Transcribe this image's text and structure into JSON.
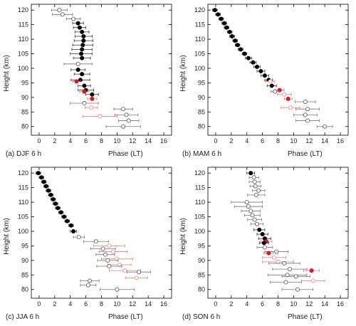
{
  "chart_data": [
    {
      "type": "scatter",
      "panel_label": "(a)  DJF 6 h",
      "xlabel": "Phase (LT)",
      "ylabel": "Height (km)",
      "xlim": [
        -1,
        17
      ],
      "ylim": [
        77,
        122
      ],
      "xticks": [
        0,
        2,
        4,
        6,
        8,
        10,
        12,
        14,
        16
      ],
      "yticks": [
        80,
        85,
        90,
        95,
        100,
        105,
        110,
        115,
        120
      ],
      "points": [
        {
          "h": 120,
          "x": 2.6,
          "e": 1.0,
          "s": "open"
        },
        {
          "h": 118.5,
          "x": 3.0,
          "e": 1.3,
          "s": "open"
        },
        {
          "h": 117,
          "x": 4.4,
          "e": 0.9,
          "s": "open"
        },
        {
          "h": 115.5,
          "x": 5.0,
          "e": 0.7,
          "s": "black"
        },
        {
          "h": 114,
          "x": 5.2,
          "e": 0.8,
          "s": "black"
        },
        {
          "h": 112.5,
          "x": 5.5,
          "e": 0.9,
          "s": "black"
        },
        {
          "h": 111,
          "x": 5.7,
          "e": 1.1,
          "s": "black"
        },
        {
          "h": 109.5,
          "x": 5.7,
          "e": 1.2,
          "s": "black"
        },
        {
          "h": 108,
          "x": 5.6,
          "e": 1.3,
          "s": "black"
        },
        {
          "h": 106.5,
          "x": 5.5,
          "e": 1.3,
          "s": "black"
        },
        {
          "h": 105,
          "x": 5.4,
          "e": 1.4,
          "s": "black"
        },
        {
          "h": 103.5,
          "x": 5.5,
          "e": 1.1,
          "s": "black"
        },
        {
          "h": 101.5,
          "x": 5.0,
          "e": 1.8,
          "s": "open"
        },
        {
          "h": 99.5,
          "x": 5.0,
          "e": 0.9,
          "s": "black"
        },
        {
          "h": 98,
          "x": 5.5,
          "e": 1.0,
          "s": "black"
        },
        {
          "h": 96,
          "x": 5.3,
          "e": 1.2,
          "s": "black"
        },
        {
          "h": 95.5,
          "x": 4.8,
          "e": 0.5,
          "s": "red"
        },
        {
          "h": 94,
          "x": 5.8,
          "e": 0.8,
          "s": "black"
        },
        {
          "h": 92.5,
          "x": 6.0,
          "e": 1.0,
          "s": "black"
        },
        {
          "h": 92,
          "x": 5.8,
          "e": 0.6,
          "s": "red"
        },
        {
          "h": 91,
          "x": 6.8,
          "e": 0.8,
          "s": "black"
        },
        {
          "h": 89.5,
          "x": 6.8,
          "e": 0.6,
          "s": "red"
        },
        {
          "h": 88,
          "x": 5.8,
          "e": 1.8,
          "s": "open"
        },
        {
          "h": 86.5,
          "x": 6.7,
          "e": 0.8,
          "s": "openred"
        },
        {
          "h": 86,
          "x": 10.8,
          "e": 1.2,
          "s": "open"
        },
        {
          "h": 84,
          "x": 11.2,
          "e": 1.5,
          "s": "open"
        },
        {
          "h": 83.5,
          "x": 7.8,
          "e": 2.2,
          "s": "openred"
        },
        {
          "h": 82,
          "x": 11.5,
          "e": 1.3,
          "s": "open"
        },
        {
          "h": 80,
          "x": 10.8,
          "e": 2.2,
          "s": "open"
        }
      ]
    },
    {
      "type": "scatter",
      "panel_label": "(b)  MAM 6 h",
      "xlabel": "Phase (LT)",
      "ylabel": "Height (km)",
      "xlim": [
        -1,
        17
      ],
      "ylim": [
        77,
        122
      ],
      "xticks": [
        0,
        2,
        4,
        6,
        8,
        10,
        12,
        14,
        16
      ],
      "yticks": [
        80,
        85,
        90,
        95,
        100,
        105,
        110,
        115,
        120
      ],
      "points": [
        {
          "h": 120,
          "x": -0.1,
          "e": 0.3,
          "s": "black"
        },
        {
          "h": 118.5,
          "x": 0.3,
          "e": 0.3,
          "s": "black"
        },
        {
          "h": 117,
          "x": 0.7,
          "e": 0.3,
          "s": "black"
        },
        {
          "h": 115.5,
          "x": 1.1,
          "e": 0.3,
          "s": "black"
        },
        {
          "h": 114,
          "x": 1.4,
          "e": 0.3,
          "s": "black"
        },
        {
          "h": 112.5,
          "x": 1.8,
          "e": 0.3,
          "s": "black"
        },
        {
          "h": 111,
          "x": 2.1,
          "e": 0.3,
          "s": "black"
        },
        {
          "h": 109.5,
          "x": 2.5,
          "e": 0.3,
          "s": "black"
        },
        {
          "h": 108,
          "x": 2.8,
          "e": 0.3,
          "s": "black"
        },
        {
          "h": 106.5,
          "x": 3.2,
          "e": 0.3,
          "s": "black"
        },
        {
          "h": 105,
          "x": 3.7,
          "e": 0.3,
          "s": "black"
        },
        {
          "h": 103.5,
          "x": 4.2,
          "e": 0.4,
          "s": "black"
        },
        {
          "h": 102,
          "x": 4.8,
          "e": 0.4,
          "s": "black"
        },
        {
          "h": 100.5,
          "x": 5.3,
          "e": 0.4,
          "s": "black"
        },
        {
          "h": 99,
          "x": 5.8,
          "e": 0.5,
          "s": "black"
        },
        {
          "h": 97.5,
          "x": 6.3,
          "e": 0.5,
          "s": "black"
        },
        {
          "h": 96,
          "x": 6.8,
          "e": 0.5,
          "s": "black"
        },
        {
          "h": 95.5,
          "x": 7.0,
          "e": 0.6,
          "s": "openred"
        },
        {
          "h": 94,
          "x": 7.2,
          "e": 0.6,
          "s": "black"
        },
        {
          "h": 92.5,
          "x": 8.2,
          "e": 0.6,
          "s": "red"
        },
        {
          "h": 92,
          "x": 7.6,
          "e": 0.5,
          "s": "open"
        },
        {
          "h": 91,
          "x": 8.8,
          "e": 0.9,
          "s": "openred"
        },
        {
          "h": 89.5,
          "x": 9.3,
          "e": 0.5,
          "s": "red"
        },
        {
          "h": 88.5,
          "x": 11.5,
          "e": 1.3,
          "s": "open"
        },
        {
          "h": 86.5,
          "x": 9.6,
          "e": 1.2,
          "s": "openred"
        },
        {
          "h": 86,
          "x": 11.8,
          "e": 1.5,
          "s": "open"
        },
        {
          "h": 84,
          "x": 11.5,
          "e": 1.5,
          "s": "open"
        },
        {
          "h": 82,
          "x": 11.8,
          "e": 1.5,
          "s": "open"
        },
        {
          "h": 80,
          "x": 14.0,
          "e": 1.0,
          "s": "open"
        }
      ]
    },
    {
      "type": "scatter",
      "panel_label": "(c)  JJA 6 h",
      "xlabel": "Phase (LT)",
      "ylabel": "Height (km)",
      "xlim": [
        -1,
        17
      ],
      "ylim": [
        77,
        122
      ],
      "xticks": [
        0,
        2,
        4,
        6,
        8,
        10,
        12,
        14,
        16
      ],
      "yticks": [
        80,
        85,
        90,
        95,
        100,
        105,
        110,
        115,
        120
      ],
      "points": [
        {
          "h": 120,
          "x": -0.1,
          "e": 0.3,
          "s": "black"
        },
        {
          "h": 118.5,
          "x": 0.3,
          "e": 0.3,
          "s": "black"
        },
        {
          "h": 117,
          "x": 0.6,
          "e": 0.3,
          "s": "black"
        },
        {
          "h": 115.5,
          "x": 0.9,
          "e": 0.3,
          "s": "black"
        },
        {
          "h": 114,
          "x": 1.2,
          "e": 0.3,
          "s": "black"
        },
        {
          "h": 112.5,
          "x": 1.5,
          "e": 0.3,
          "s": "black"
        },
        {
          "h": 111,
          "x": 1.8,
          "e": 0.3,
          "s": "black"
        },
        {
          "h": 109.5,
          "x": 2.1,
          "e": 0.3,
          "s": "black"
        },
        {
          "h": 108,
          "x": 2.4,
          "e": 0.3,
          "s": "black"
        },
        {
          "h": 106.5,
          "x": 2.8,
          "e": 0.3,
          "s": "black"
        },
        {
          "h": 105,
          "x": 3.2,
          "e": 0.3,
          "s": "black"
        },
        {
          "h": 103.5,
          "x": 3.6,
          "e": 0.3,
          "s": "black"
        },
        {
          "h": 102,
          "x": 4.1,
          "e": 0.3,
          "s": "black"
        },
        {
          "h": 100,
          "x": 4.4,
          "e": 0.4,
          "s": "black"
        },
        {
          "h": 98,
          "x": 5.1,
          "e": 0.7,
          "s": "open"
        },
        {
          "h": 96.5,
          "x": 7.3,
          "e": 1.6,
          "s": "open"
        },
        {
          "h": 95,
          "x": 9.0,
          "e": 2.0,
          "s": "openred"
        },
        {
          "h": 94,
          "x": 8.2,
          "e": 1.6,
          "s": "open"
        },
        {
          "h": 93,
          "x": 9.5,
          "e": 1.8,
          "s": "openred"
        },
        {
          "h": 92,
          "x": 8.5,
          "e": 1.2,
          "s": "open"
        },
        {
          "h": 90.5,
          "x": 10.0,
          "e": 2.0,
          "s": "openred"
        },
        {
          "h": 90,
          "x": 8.8,
          "e": 1.3,
          "s": "open"
        },
        {
          "h": 88.5,
          "x": 10.3,
          "e": 1.5,
          "s": "openred"
        },
        {
          "h": 88,
          "x": 9.0,
          "e": 1.6,
          "s": "open"
        },
        {
          "h": 86.5,
          "x": 11.0,
          "e": 2.0,
          "s": "openred"
        },
        {
          "h": 86,
          "x": 12.8,
          "e": 1.5,
          "s": "open"
        },
        {
          "h": 84,
          "x": 12.5,
          "e": 1.4,
          "s": "openred"
        },
        {
          "h": 83,
          "x": 6.5,
          "e": 1.2,
          "s": "open"
        },
        {
          "h": 81.5,
          "x": 6.3,
          "e": 1.0,
          "s": "open"
        },
        {
          "h": 80,
          "x": 10.0,
          "e": 2.2,
          "s": "open"
        }
      ]
    },
    {
      "type": "scatter",
      "panel_label": "(d)  SON 6 h",
      "xlabel": "Phase (LT)",
      "ylabel": "Height (km)",
      "xlim": [
        -1,
        17
      ],
      "ylim": [
        77,
        122
      ],
      "xticks": [
        0,
        2,
        4,
        6,
        8,
        10,
        12,
        14,
        16
      ],
      "yticks": [
        80,
        85,
        90,
        95,
        100,
        105,
        110,
        115,
        120
      ],
      "points": [
        {
          "h": 120,
          "x": 4.5,
          "e": 0.5,
          "s": "black"
        },
        {
          "h": 118.5,
          "x": 4.9,
          "e": 0.6,
          "s": "open"
        },
        {
          "h": 117,
          "x": 5.0,
          "e": 0.7,
          "s": "open"
        },
        {
          "h": 115.5,
          "x": 5.1,
          "e": 0.7,
          "s": "open"
        },
        {
          "h": 114,
          "x": 5.5,
          "e": 0.8,
          "s": "open"
        },
        {
          "h": 112.5,
          "x": 5.2,
          "e": 1.1,
          "s": "open"
        },
        {
          "h": 110,
          "x": 4.0,
          "e": 2.0,
          "s": "open"
        },
        {
          "h": 108.5,
          "x": 4.2,
          "e": 1.8,
          "s": "open"
        },
        {
          "h": 107,
          "x": 4.5,
          "e": 1.2,
          "s": "open"
        },
        {
          "h": 105.5,
          "x": 4.7,
          "e": 1.0,
          "s": "open"
        },
        {
          "h": 104,
          "x": 5.0,
          "e": 0.9,
          "s": "open"
        },
        {
          "h": 102.5,
          "x": 5.3,
          "e": 0.8,
          "s": "open"
        },
        {
          "h": 100.5,
          "x": 5.6,
          "e": 0.7,
          "s": "black"
        },
        {
          "h": 99,
          "x": 6.0,
          "e": 0.7,
          "s": "black"
        },
        {
          "h": 97.5,
          "x": 6.3,
          "e": 0.8,
          "s": "black"
        },
        {
          "h": 96.5,
          "x": 6.5,
          "e": 0.7,
          "s": "red"
        },
        {
          "h": 96,
          "x": 6.2,
          "e": 0.6,
          "s": "black"
        },
        {
          "h": 94.5,
          "x": 6.3,
          "e": 1.0,
          "s": "open"
        },
        {
          "h": 93,
          "x": 7.8,
          "e": 1.5,
          "s": "open"
        },
        {
          "h": 92.5,
          "x": 6.8,
          "e": 0.6,
          "s": "red"
        },
        {
          "h": 91,
          "x": 7.5,
          "e": 1.5,
          "s": "openred"
        },
        {
          "h": 89.5,
          "x": 8.0,
          "e": 2.0,
          "s": "openred"
        },
        {
          "h": 89,
          "x": 8.8,
          "e": 2.0,
          "s": "open"
        },
        {
          "h": 87,
          "x": 9.5,
          "e": 2.2,
          "s": "open"
        },
        {
          "h": 86.5,
          "x": 12.3,
          "e": 1.0,
          "s": "red"
        },
        {
          "h": 85,
          "x": 9.2,
          "e": 2.5,
          "s": "open"
        },
        {
          "h": 84.5,
          "x": 10.3,
          "e": 1.8,
          "s": "open"
        },
        {
          "h": 83,
          "x": 12.5,
          "e": 1.5,
          "s": "openred"
        },
        {
          "h": 82.5,
          "x": 9.0,
          "e": 2.0,
          "s": "open"
        },
        {
          "h": 80,
          "x": 10.5,
          "e": 2.0,
          "s": "open"
        }
      ]
    }
  ],
  "colors": {
    "black": "#000000",
    "red": "#e4141c",
    "openred_stroke": "#f08a8a",
    "open_stroke": "#555555",
    "err_black": "#333333",
    "err_red": "#e87a7a"
  }
}
